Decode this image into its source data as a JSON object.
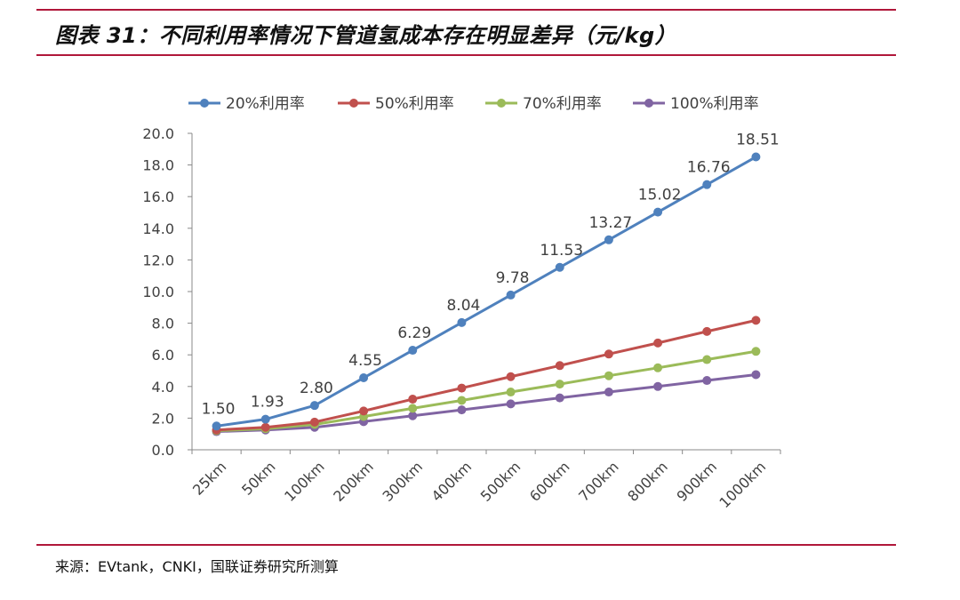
{
  "figure": {
    "title": "图表 31：不同利用率情况下管道氢成本存在明显差异（元/kg）",
    "source": "来源：EVtank，CNKI，国联证券研究所测算"
  },
  "colors": {
    "rule": "#b0173a",
    "axis": "#888888",
    "text": "#404040"
  },
  "chart_data": {
    "type": "line",
    "title": "",
    "xlabel": "",
    "ylabel": "",
    "ylim": [
      0,
      20
    ],
    "yticks": [
      "0.0",
      "2.0",
      "4.0",
      "6.0",
      "8.0",
      "10.0",
      "12.0",
      "14.0",
      "16.0",
      "18.0",
      "20.0"
    ],
    "categories": [
      "25km",
      "50km",
      "100km",
      "200km",
      "300km",
      "400km",
      "500km",
      "600km",
      "700km",
      "800km",
      "900km",
      "1000km"
    ],
    "legend_position": "top",
    "series": [
      {
        "name": "20%利用率",
        "color": "#4f81bd",
        "values": [
          1.5,
          1.93,
          2.8,
          4.55,
          6.29,
          8.04,
          9.78,
          11.53,
          13.27,
          15.02,
          16.76,
          18.51
        ],
        "labels": [
          "1.50",
          "1.93",
          "2.80",
          "4.55",
          "6.29",
          "8.04",
          "9.78",
          "11.53",
          "13.27",
          "15.02",
          "16.76",
          "18.51"
        ]
      },
      {
        "name": "50%利用率",
        "color": "#c0504d",
        "values": [
          1.25,
          1.42,
          1.75,
          2.45,
          3.2,
          3.9,
          4.62,
          5.32,
          6.05,
          6.75,
          7.48,
          8.18
        ]
      },
      {
        "name": "70%利用率",
        "color": "#9bbb59",
        "values": [
          1.2,
          1.33,
          1.6,
          2.1,
          2.62,
          3.12,
          3.65,
          4.15,
          4.68,
          5.18,
          5.7,
          6.22
        ]
      },
      {
        "name": "100%利用率",
        "color": "#8064a2",
        "values": [
          1.15,
          1.25,
          1.42,
          1.78,
          2.15,
          2.52,
          2.9,
          3.28,
          3.65,
          4.0,
          4.38,
          4.75
        ]
      }
    ]
  }
}
